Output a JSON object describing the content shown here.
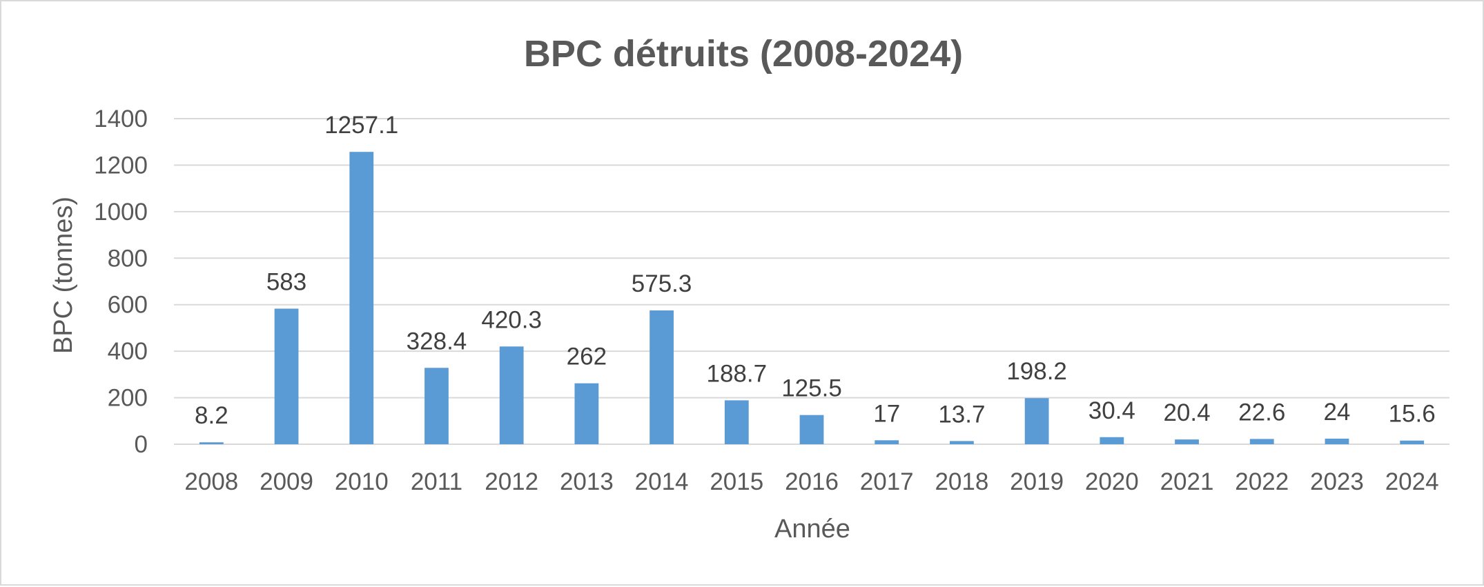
{
  "colors": {
    "bar": "#5b9bd5",
    "gridline": "#d9d9d9",
    "text": "#595959",
    "data_label": "#404040"
  },
  "chart_data": {
    "type": "bar",
    "title": "BPC détruits (2008-2024)",
    "xlabel": "Année",
    "ylabel": "BPC (tonnes)",
    "ylim": [
      0,
      1400
    ],
    "yticks": [
      0,
      200,
      400,
      600,
      800,
      1000,
      1200,
      1400
    ],
    "grid": true,
    "legend": "none",
    "categories": [
      "2008",
      "2009",
      "2010",
      "2011",
      "2012",
      "2013",
      "2014",
      "2015",
      "2016",
      "2017",
      "2018",
      "2019",
      "2020",
      "2021",
      "2022",
      "2023",
      "2024"
    ],
    "values": [
      8.2,
      583,
      1257.1,
      328.4,
      420.3,
      262,
      575.3,
      188.7,
      125.5,
      17,
      13.7,
      198.2,
      30.4,
      20.4,
      22.6,
      24,
      15.6
    ],
    "data_labels": [
      "8.2",
      "583",
      "1257.1",
      "328.4",
      "420.3",
      "262",
      "575.3",
      "188.7",
      "125.5",
      "17",
      "13.7",
      "198.2",
      "30.4",
      "20.4",
      "22.6",
      "24",
      "15.6"
    ]
  }
}
